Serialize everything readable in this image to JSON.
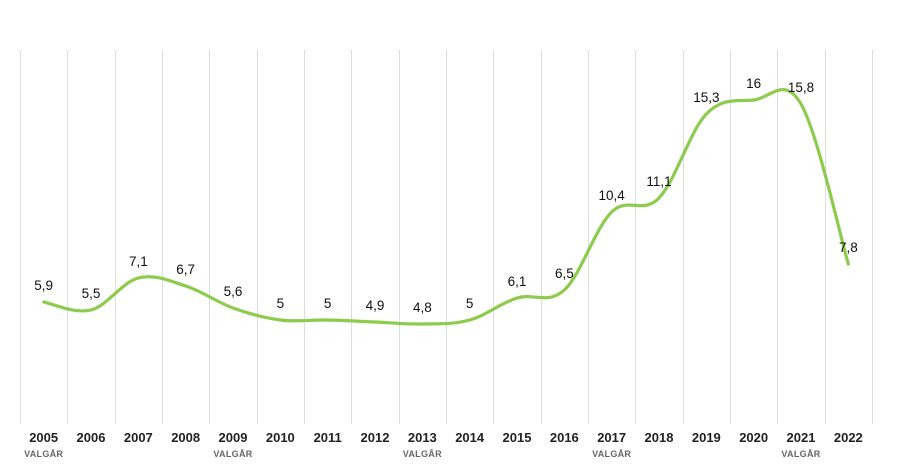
{
  "chart_data": {
    "type": "line",
    "categories": [
      "2005",
      "2006",
      "2007",
      "2008",
      "2009",
      "2010",
      "2011",
      "2012",
      "2013",
      "2014",
      "2015",
      "2016",
      "2017",
      "2018",
      "2019",
      "2020",
      "2021",
      "2022"
    ],
    "series": [
      {
        "values": [
          5.9,
          5.5,
          7.1,
          6.7,
          5.6,
          5,
          5,
          4.9,
          4.8,
          5,
          6.1,
          6.5,
          10.4,
          11.1,
          15.3,
          16,
          15.8,
          7.8
        ],
        "labels": [
          "5,9",
          "5,5",
          "7,1",
          "6,7",
          "5,6",
          "5",
          "5",
          "4,9",
          "4,8",
          "5",
          "6,1",
          "6,5",
          "10,4",
          "11,1",
          "15,3",
          "16",
          "15,8",
          "7,8"
        ]
      }
    ],
    "sublabels": [
      "VALGÅR",
      "",
      "",
      "",
      "VALGÅR",
      "",
      "",
      "",
      "VALGÅR",
      "",
      "",
      "",
      "VALGÅR",
      "",
      "",
      "",
      "VALGÅR",
      ""
    ],
    "line_color": "#8DCB4C",
    "grid": "vertical",
    "grid_color": "#DDDDDD",
    "ylim": [
      0,
      18
    ]
  }
}
